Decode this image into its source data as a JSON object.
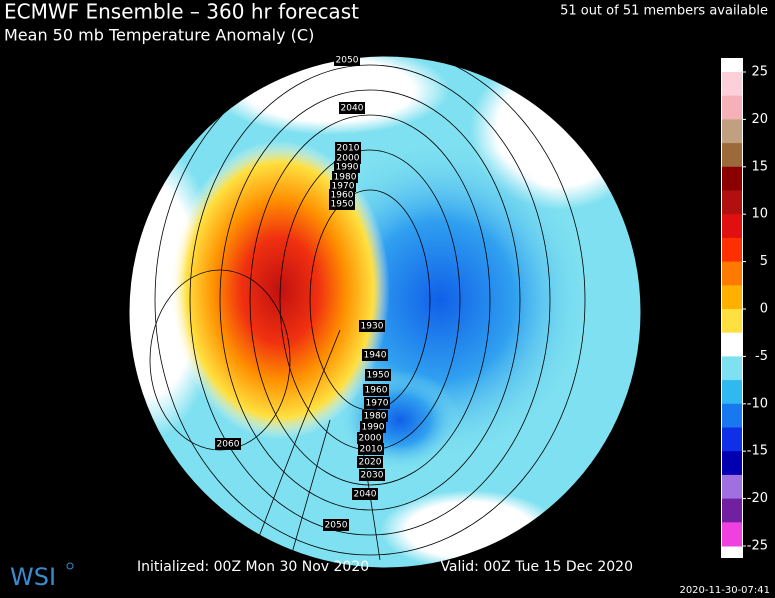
{
  "header": {
    "title": "ECMWF Ensemble – 360 hr forecast",
    "subtitle": "Mean 50 mb Temperature Anomaly (C)",
    "members": "51 out of 51 members available"
  },
  "colorbar": {
    "ticks": [
      25,
      20,
      15,
      10,
      5,
      0,
      -5,
      -10,
      -15,
      -20,
      -25
    ],
    "colors": [
      "#fbd0d8",
      "#f6b0b8",
      "#c0a080",
      "#9c6a3a",
      "#8b0000",
      "#b01010",
      "#e01010",
      "#ff3000",
      "#ff7a00",
      "#ffb000",
      "#ffe040",
      "#ffffff",
      "#7ee0f0",
      "#30b8f0",
      "#1878f0",
      "#1030e8",
      "#0000b0",
      "#a070e0",
      "#7020a0",
      "#f040e0"
    ]
  },
  "contours": {
    "labels": [
      "2050",
      "2040",
      "2010",
      "2000",
      "1990",
      "1980",
      "1970",
      "1960",
      "1950",
      "1930",
      "1940",
      "1950",
      "1960",
      "1970",
      "1980",
      "1990",
      "2000",
      "2010",
      "2020",
      "2030",
      "2040",
      "2050",
      "2060"
    ]
  },
  "footer": {
    "initialized": "Initialized: 00Z Mon 30 Nov 2020",
    "valid": "Valid: 00Z Tue 15 Dec 2020",
    "timestamp": "2020-11-30-07:41",
    "logo": "WSI"
  }
}
